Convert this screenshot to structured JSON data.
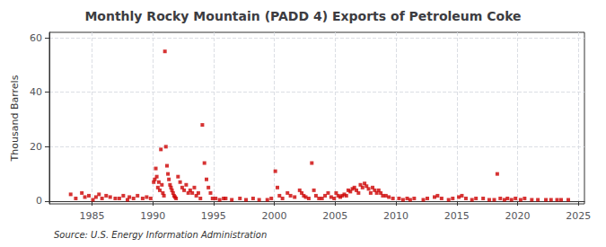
{
  "chart_data": {
    "type": "scatter",
    "title": "Monthly Rocky Mountain (PADD 4) Exports of Petroleum Coke",
    "ylabel": "Thousand Barrels",
    "annotation": "Source: U.S. Energy Information Administration",
    "color": "#cc0000",
    "marker": "square",
    "grid": true,
    "xlim": [
      1981.5,
      2025.5
    ],
    "ylim": [
      -1,
      62
    ],
    "xticks": [
      1985,
      1990,
      1995,
      2000,
      2005,
      2010,
      2015,
      2020,
      2025
    ],
    "yticks": [
      0,
      20,
      40,
      60
    ],
    "x": [
      1983.25,
      1983.67,
      1984.17,
      1984.42,
      1984.75,
      1985.08,
      1985.33,
      1985.58,
      1985.83,
      1986.17,
      1986.5,
      1986.92,
      1987.25,
      1987.58,
      1987.92,
      1988.08,
      1988.42,
      1988.75,
      1989.17,
      1989.5,
      1989.83,
      1990.08,
      1990.17,
      1990.25,
      1990.33,
      1990.42,
      1990.5,
      1990.58,
      1990.67,
      1990.75,
      1990.83,
      1990.92,
      1991.0,
      1991.08,
      1991.17,
      1991.25,
      1991.33,
      1991.42,
      1991.5,
      1991.58,
      1991.67,
      1991.75,
      1991.83,
      1991.92,
      1992.08,
      1992.25,
      1992.42,
      1992.58,
      1992.75,
      1992.92,
      1993.08,
      1993.25,
      1993.42,
      1993.58,
      1993.75,
      1993.92,
      1994.08,
      1994.25,
      1994.42,
      1994.58,
      1994.75,
      1994.92,
      1995.17,
      1995.5,
      1995.83,
      1996.0,
      1996.5,
      1997.17,
      1997.67,
      1998.25,
      1998.75,
      1999.42,
      1999.75,
      2000.08,
      2000.25,
      2000.42,
      2000.67,
      2001.08,
      2001.33,
      2001.67,
      2002.08,
      2002.25,
      2002.42,
      2002.58,
      2002.83,
      2003.08,
      2003.25,
      2003.42,
      2003.67,
      2003.92,
      2004.17,
      2004.42,
      2004.67,
      2004.92,
      2005.08,
      2005.25,
      2005.42,
      2005.58,
      2005.75,
      2005.92,
      2006.08,
      2006.25,
      2006.42,
      2006.58,
      2006.75,
      2006.92,
      2007.08,
      2007.25,
      2007.42,
      2007.58,
      2007.75,
      2007.92,
      2008.08,
      2008.25,
      2008.42,
      2008.58,
      2008.75,
      2008.92,
      2009.17,
      2009.42,
      2009.75,
      2010.25,
      2010.58,
      2010.92,
      2011.17,
      2011.5,
      2012.25,
      2012.58,
      2013.17,
      2013.42,
      2013.75,
      2014.33,
      2014.67,
      2015.17,
      2015.42,
      2015.75,
      2016.25,
      2016.58,
      2017.17,
      2017.67,
      2018.08,
      2018.33,
      2018.58,
      2018.92,
      2019.17,
      2019.5,
      2019.83,
      2020.25,
      2020.58,
      2021.17,
      2021.67,
      2022.33,
      2022.75,
      2023.25,
      2023.58,
      2024.17
    ],
    "values": [
      2.5,
      1.0,
      3.0,
      1.5,
      2.0,
      0.5,
      1.5,
      2.5,
      1.0,
      2.0,
      1.5,
      1.0,
      1.0,
      2.0,
      0.5,
      1.5,
      1.0,
      2.0,
      1.0,
      1.5,
      1.0,
      7.0,
      8.0,
      12.0,
      9.0,
      5.0,
      7.0,
      4.0,
      19.0,
      6.0,
      3.0,
      2.0,
      55.0,
      20.0,
      13.0,
      10.0,
      8.0,
      6.0,
      5.0,
      4.0,
      3.0,
      2.0,
      1.5,
      1.0,
      9.0,
      7.0,
      5.0,
      4.0,
      6.0,
      3.0,
      4.0,
      3.0,
      5.0,
      2.0,
      3.0,
      1.0,
      28.0,
      14.0,
      8.0,
      5.0,
      3.0,
      1.0,
      1.0,
      0.5,
      1.0,
      1.0,
      0.5,
      1.0,
      0.5,
      1.0,
      0.5,
      0.5,
      1.0,
      11.0,
      5.0,
      2.0,
      1.0,
      3.0,
      2.0,
      1.5,
      4.0,
      3.0,
      2.0,
      1.5,
      1.0,
      14.0,
      4.0,
      2.0,
      1.0,
      1.0,
      2.0,
      3.0,
      1.5,
      1.0,
      3.0,
      2.0,
      1.5,
      2.0,
      2.5,
      2.0,
      4.0,
      3.5,
      4.5,
      5.0,
      4.0,
      3.0,
      6.0,
      5.0,
      6.5,
      5.5,
      4.5,
      3.0,
      5.0,
      4.0,
      3.0,
      4.0,
      3.0,
      2.0,
      2.0,
      1.5,
      1.0,
      1.0,
      0.5,
      1.0,
      0.5,
      1.0,
      0.5,
      1.0,
      1.5,
      2.0,
      1.0,
      0.5,
      1.0,
      1.5,
      2.0,
      1.0,
      0.5,
      1.0,
      1.0,
      0.5,
      0.5,
      10.0,
      1.0,
      0.5,
      1.0,
      0.5,
      1.0,
      0.5,
      1.0,
      0.5,
      0.5,
      0.5,
      0.5,
      0.5,
      0.5,
      0.5
    ]
  }
}
